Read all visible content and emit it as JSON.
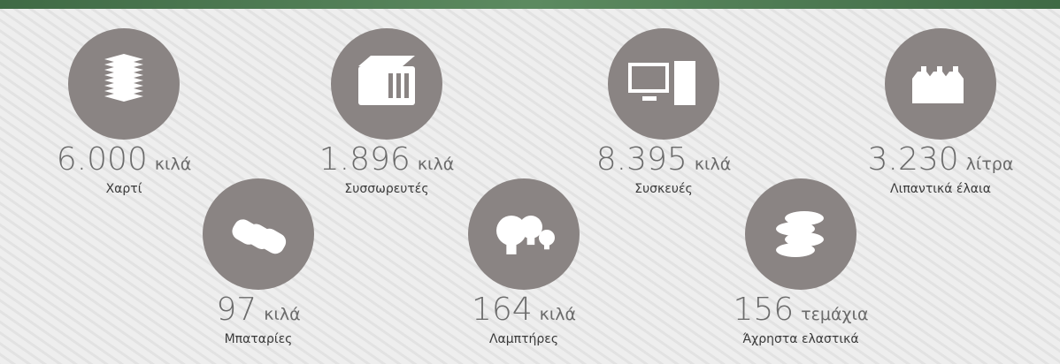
{
  "items": [
    {
      "amount": "6.000",
      "unit": "κιλά",
      "label": "Χαρτί"
    },
    {
      "amount": "1.896",
      "unit": "κιλά",
      "label": "Συσσωρευτές"
    },
    {
      "amount": "8.395",
      "unit": "κιλά",
      "label": "Συσκευές"
    },
    {
      "amount": "3.230",
      "unit": "λίτρα",
      "label": "Λιπαντικά έλαια"
    },
    {
      "amount": "97",
      "unit": "κιλά",
      "label": "Μπαταρίες"
    },
    {
      "amount": "164",
      "unit": "κιλά",
      "label": "Λαμπτήρες"
    },
    {
      "amount": "156",
      "unit": "τεμάχια",
      "label": "Άχρηστα ελαστικά"
    }
  ]
}
